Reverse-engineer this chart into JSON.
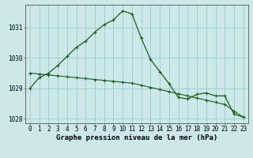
{
  "title": "Graphe pression niveau de la mer (hPa)",
  "background_color": "#cce8e8",
  "grid_color": "#99cccc",
  "line_color": "#1a5c1a",
  "x_values": [
    0,
    1,
    2,
    3,
    4,
    5,
    6,
    7,
    8,
    9,
    10,
    11,
    12,
    13,
    14,
    15,
    16,
    17,
    18,
    19,
    20,
    21,
    22,
    23
  ],
  "y_main": [
    1029.0,
    1029.35,
    1029.5,
    1029.75,
    1030.05,
    1030.35,
    1030.55,
    1030.85,
    1031.1,
    1031.25,
    1031.55,
    1031.45,
    1030.65,
    1029.95,
    1029.55,
    1029.15,
    1028.7,
    1028.65,
    1028.8,
    1028.85,
    1028.75,
    1028.75,
    1028.15,
    1028.05
  ],
  "y_trend": [
    1029.5,
    1029.47,
    1029.44,
    1029.41,
    1029.38,
    1029.35,
    1029.32,
    1029.29,
    1029.26,
    1029.23,
    1029.2,
    1029.17,
    1029.1,
    1029.03,
    1028.96,
    1028.89,
    1028.82,
    1028.75,
    1028.68,
    1028.61,
    1028.54,
    1028.47,
    1028.25,
    1028.05
  ],
  "ylim": [
    1027.85,
    1031.75
  ],
  "yticks": [
    1028,
    1029,
    1030,
    1031
  ],
  "tick_fontsize": 5.5,
  "xlabel_fontsize": 6.5
}
